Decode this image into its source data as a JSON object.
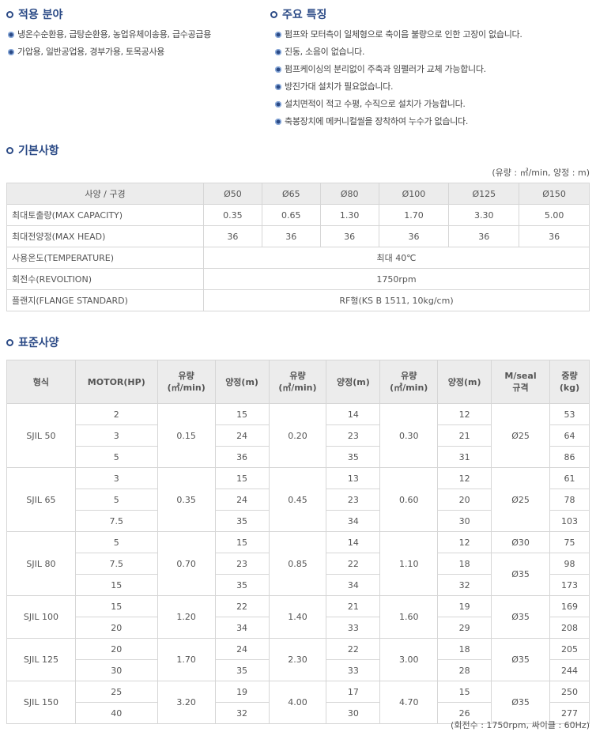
{
  "applications": {
    "title": "적용 분야",
    "items": [
      "냉온수순환용, 급탕순환용, 농업유체이송용, 급수공급용",
      "가압용, 일반공업용, 경부가용, 토목공사용"
    ]
  },
  "features": {
    "title": "주요 특징",
    "items": [
      "펌프와 모터측이 일체형으로 축이음 불량으로 인한 고장이 없습니다.",
      "진동, 소음이 없습니다.",
      "펌프케이싱의 분리없이 주축과 임펠러가 교체 가능합니다.",
      "방진가대 설치가 필요없습니다.",
      "설치면적이 적고 수평, 수직으로 설치가 가능합니다.",
      "축봉장치에 메커니컬씰을 장착하여 누수가 없습니다."
    ]
  },
  "basic": {
    "title": "기본사항",
    "unit": "(유량 : ㎥/min, 양정 : m)",
    "header": [
      "사양 / 구경",
      "Ø50",
      "Ø65",
      "Ø80",
      "Ø100",
      "Ø125",
      "Ø150"
    ],
    "rows": [
      {
        "label": "최대토출량(MAX CAPACITY)",
        "values": [
          "0.35",
          "0.65",
          "1.30",
          "1.70",
          "3.30",
          "5.00"
        ]
      },
      {
        "label": "최대전양정(MAX HEAD)",
        "values": [
          "36",
          "36",
          "36",
          "36",
          "36",
          "36"
        ]
      }
    ],
    "merged_rows": [
      {
        "label": "사용온도(TEMPERATURE)",
        "value": "최대 40℃"
      },
      {
        "label": "회전수(REVOLTION)",
        "value": "1750rpm"
      },
      {
        "label": "플랜지(FLANGE STANDARD)",
        "value": "RF형(KS B 1511, 10kg/cm)"
      }
    ]
  },
  "standard": {
    "title": "표준사양",
    "note": "(회전수 : 1750rpm, 싸이클 : 60Hz)",
    "header": [
      [
        "형식"
      ],
      [
        "MOTOR(HP)"
      ],
      [
        "유량",
        "(㎥/min)"
      ],
      [
        "양정(m)"
      ],
      [
        "유량",
        "(㎥/min)"
      ],
      [
        "양정(m)"
      ],
      [
        "유량",
        "(㎥/min)"
      ],
      [
        "양정(m)"
      ],
      [
        "M/seal",
        "규격"
      ],
      [
        "중량",
        "(kg)"
      ]
    ],
    "groups": [
      {
        "model": "SJIL 50",
        "flows": [
          "0.15",
          "0.20",
          "0.30"
        ],
        "seals": [
          {
            "value": "Ø25",
            "span": 3
          }
        ],
        "rows": [
          {
            "motor": "2",
            "heads": [
              "15",
              "14",
              "12"
            ],
            "weight": "53"
          },
          {
            "motor": "3",
            "heads": [
              "24",
              "23",
              "21"
            ],
            "weight": "64"
          },
          {
            "motor": "5",
            "heads": [
              "36",
              "35",
              "31"
            ],
            "weight": "86"
          }
        ]
      },
      {
        "model": "SJIL 65",
        "flows": [
          "0.35",
          "0.45",
          "0.60"
        ],
        "seals": [
          {
            "value": "Ø25",
            "span": 3
          }
        ],
        "rows": [
          {
            "motor": "3",
            "heads": [
              "15",
              "13",
              "12"
            ],
            "weight": "61"
          },
          {
            "motor": "5",
            "heads": [
              "24",
              "23",
              "20"
            ],
            "weight": "78"
          },
          {
            "motor": "7.5",
            "heads": [
              "35",
              "34",
              "30"
            ],
            "weight": "103"
          }
        ]
      },
      {
        "model": "SJIL 80",
        "flows": [
          "0.70",
          "0.85",
          "1.10"
        ],
        "seals": [
          {
            "value": "Ø30",
            "span": 1
          },
          {
            "value": "Ø35",
            "span": 2
          }
        ],
        "rows": [
          {
            "motor": "5",
            "heads": [
              "15",
              "14",
              "12"
            ],
            "weight": "75"
          },
          {
            "motor": "7.5",
            "heads": [
              "23",
              "22",
              "18"
            ],
            "weight": "98"
          },
          {
            "motor": "15",
            "heads": [
              "35",
              "34",
              "32"
            ],
            "weight": "173"
          }
        ]
      },
      {
        "model": "SJIL 100",
        "flows": [
          "1.20",
          "1.40",
          "1.60"
        ],
        "seals": [
          {
            "value": "Ø35",
            "span": 2
          }
        ],
        "rows": [
          {
            "motor": "15",
            "heads": [
              "22",
              "21",
              "19"
            ],
            "weight": "169"
          },
          {
            "motor": "20",
            "heads": [
              "34",
              "33",
              "29"
            ],
            "weight": "208"
          }
        ]
      },
      {
        "model": "SJIL 125",
        "flows": [
          "1.70",
          "2.30",
          "3.00"
        ],
        "seals": [
          {
            "value": "Ø35",
            "span": 2
          }
        ],
        "rows": [
          {
            "motor": "20",
            "heads": [
              "24",
              "22",
              "18"
            ],
            "weight": "205"
          },
          {
            "motor": "30",
            "heads": [
              "35",
              "33",
              "28"
            ],
            "weight": "244"
          }
        ]
      },
      {
        "model": "SJIL 150",
        "flows": [
          "3.20",
          "4.00",
          "4.70"
        ],
        "seals": [
          {
            "value": "Ø35",
            "span": 2
          }
        ],
        "rows": [
          {
            "motor": "25",
            "heads": [
              "19",
              "17",
              "15"
            ],
            "weight": "250"
          },
          {
            "motor": "40",
            "heads": [
              "32",
              "30",
              "26"
            ],
            "weight": "277"
          }
        ]
      }
    ]
  }
}
